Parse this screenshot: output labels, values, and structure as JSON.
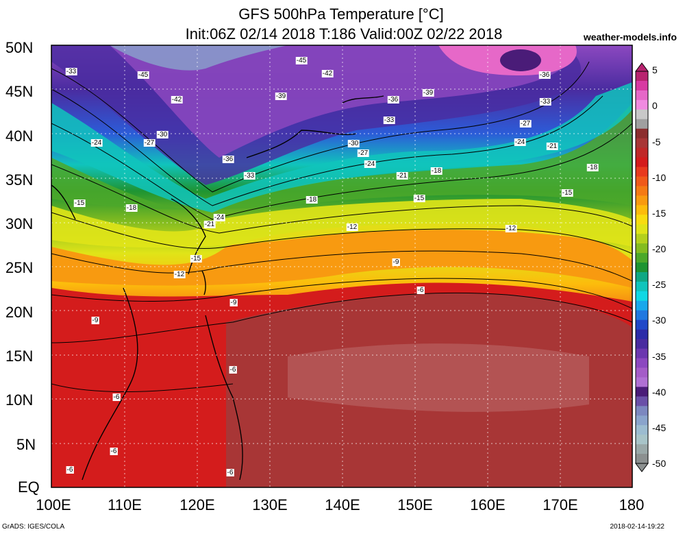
{
  "title": {
    "line1": "GFS 500hPa Temperature [°C]",
    "line2": "Init:06Z 02/14 2018 T:186 Valid:00Z 02/22 2018"
  },
  "site": "weather-models.info",
  "lat_labels": [
    "50N",
    "45N",
    "40N",
    "35N",
    "30N",
    "25N",
    "20N",
    "15N",
    "10N",
    "5N",
    "EQ"
  ],
  "lon_labels": [
    "100E",
    "110E",
    "120E",
    "130E",
    "140E",
    "150E",
    "160E",
    "170E",
    "180"
  ],
  "colorbar": {
    "labels": [
      "5",
      "0",
      "-5",
      "-10",
      "-15",
      "-20",
      "-25",
      "-30",
      "-35",
      "-40",
      "-45",
      "-50"
    ],
    "colors": [
      "#b8236f",
      "#d83aa2",
      "#e668c8",
      "#f08ae0",
      "#c8c8c8",
      "#a0a0a0",
      "#8c2e2e",
      "#a83636",
      "#c02828",
      "#d41c1c",
      "#e83a1e",
      "#f05a1a",
      "#f47a14",
      "#f89a10",
      "#fcbc0c",
      "#f8dc10",
      "#e0e418",
      "#b4d01c",
      "#84bc20",
      "#4ca82a",
      "#1e9432",
      "#10a884",
      "#10c4bc",
      "#10d8e4",
      "#18a8ec",
      "#2078e0",
      "#2048c8",
      "#2c2ca8",
      "#4a2ca0",
      "#6c38b0",
      "#8c48c0",
      "#a45cc8",
      "#b070d4",
      "#4a1c78",
      "#6a50a8",
      "#7c88c0",
      "#8aa4cc",
      "#9cbcd0",
      "#a8c4c8",
      "#9aa8a8",
      "#8c9090"
    ]
  },
  "contour_labels": [
    {
      "text": "-33"
    },
    {
      "text": "-45"
    },
    {
      "text": "-45"
    },
    {
      "text": "-42"
    },
    {
      "text": "-36"
    },
    {
      "text": "-42"
    },
    {
      "text": "-39"
    },
    {
      "text": "-36"
    },
    {
      "text": "-39"
    },
    {
      "text": "-33"
    },
    {
      "text": "-33"
    },
    {
      "text": "-30"
    },
    {
      "text": "-27"
    },
    {
      "text": "-24"
    },
    {
      "text": "-36"
    },
    {
      "text": "-33"
    },
    {
      "text": "-30"
    },
    {
      "text": "-27"
    },
    {
      "text": "-24"
    },
    {
      "text": "-21"
    },
    {
      "text": "-18"
    },
    {
      "text": "-27"
    },
    {
      "text": "-24"
    },
    {
      "text": "-21"
    },
    {
      "text": "-18"
    },
    {
      "text": "-15"
    },
    {
      "text": "-18"
    },
    {
      "text": "-24"
    },
    {
      "text": "-21"
    },
    {
      "text": "-18"
    },
    {
      "text": "-15"
    },
    {
      "text": "-15"
    },
    {
      "text": "-12"
    },
    {
      "text": "-12"
    },
    {
      "text": "-9"
    },
    {
      "text": "-15"
    },
    {
      "text": "-12"
    },
    {
      "text": "-9"
    },
    {
      "text": "-6"
    },
    {
      "text": "-9"
    },
    {
      "text": "-6"
    },
    {
      "text": "-6"
    },
    {
      "text": "-6"
    },
    {
      "text": "-6"
    },
    {
      "text": "-6"
    }
  ],
  "footer": {
    "left": "GrADS: IGES/COLA",
    "right": "2018-02-14-19:22"
  }
}
